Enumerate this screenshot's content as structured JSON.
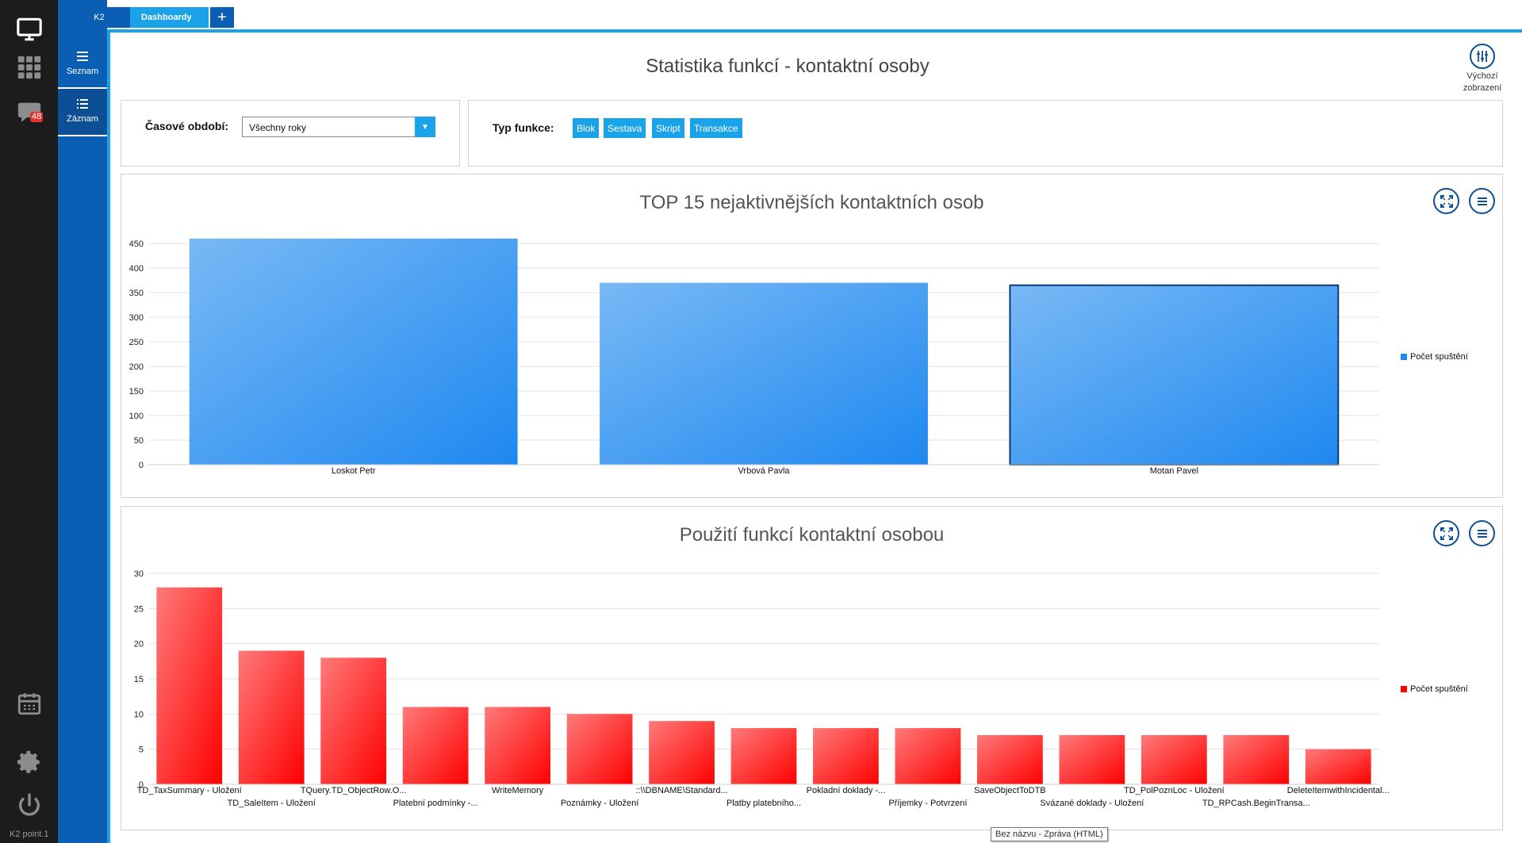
{
  "rail": {
    "badge_count": "48",
    "footer": "K2 point.1"
  },
  "subnav": {
    "items": [
      {
        "label": "Seznam"
      },
      {
        "label": "Záznam"
      }
    ]
  },
  "tabs": {
    "k2": "K2",
    "dashboard": "Dashboardy",
    "add": "+"
  },
  "page": {
    "title": "Statistika funkcí - kontaktní osoby",
    "default_view_line1": "Výchozí",
    "default_view_line2": "zobrazení"
  },
  "filters": {
    "period_label": "Časové období:",
    "period_value": "Všechny roky",
    "type_label": "Typ funkce:",
    "types": [
      "Blok",
      "Sestava",
      "Skript",
      "Transakce"
    ]
  },
  "colors": {
    "accent": "#1aa3e8",
    "nav_blue": "#0a5fb4",
    "bar_blue": "#1e88f0",
    "bar_red": "#ff0000"
  },
  "chart_data": [
    {
      "type": "bar",
      "title": "TOP 15 nejaktivnějších kontaktních osob",
      "categories": [
        "Loskot Petr",
        "Vrbová Pavla",
        "Motan Pavel"
      ],
      "series": [
        {
          "name": "Počet spuštění",
          "values": [
            460,
            370,
            365
          ]
        }
      ],
      "ylim": [
        0,
        450
      ],
      "yticks": [
        0,
        50,
        100,
        150,
        200,
        250,
        300,
        350,
        400,
        450
      ],
      "legend": "right"
    },
    {
      "type": "bar",
      "title": "Použití funkcí kontaktní osobou",
      "categories": [
        "TD_TaxSummary - Uložení",
        "TD_SaleItem - Uložení",
        "TQuery.TD_ObjectRow.O...",
        "Platební podmínky -...",
        "WriteMemory",
        "Poznámky - Uložení",
        "::\\\\DBNAME\\Standard...",
        "Platby platebního...",
        "Pokladní doklady -...",
        "Příjemky - Potvrzení",
        "SaveObjectToDTB",
        "Svázané doklady - Uložení",
        "TD_PolPoznLoc - Uložení",
        "TD_RPCash.BeginTransa...",
        "DeleteItemwithIncidental..."
      ],
      "series": [
        {
          "name": "Počet spuštění",
          "values": [
            28,
            19,
            18,
            11,
            11,
            10,
            9,
            8,
            8,
            8,
            7,
            7,
            7,
            7,
            5
          ]
        }
      ],
      "ylim": [
        0,
        30
      ],
      "yticks": [
        0,
        5,
        10,
        15,
        20,
        25,
        30
      ],
      "legend": "right"
    }
  ],
  "tooltip": "Bez názvu - Zpráva (HTML)"
}
